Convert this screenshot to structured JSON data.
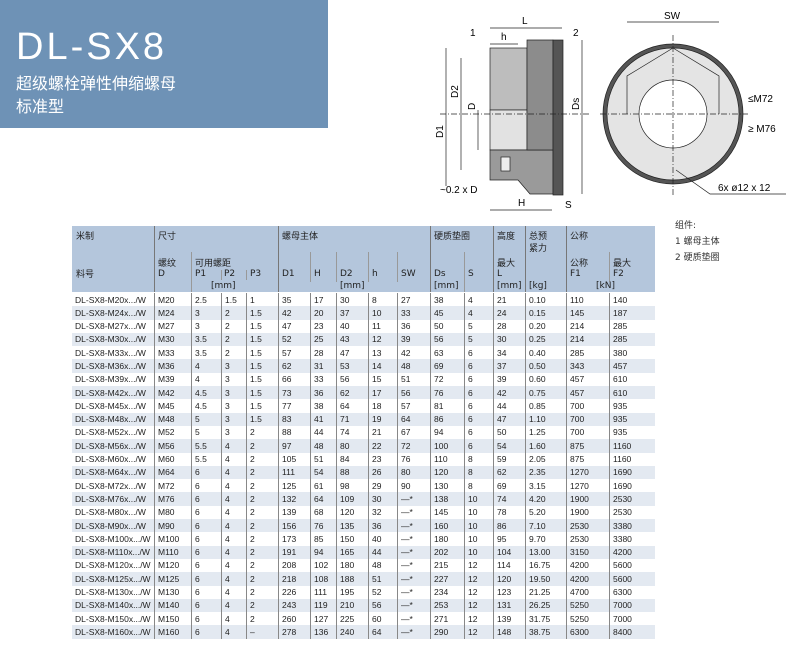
{
  "banner": {
    "title": "DL-SX8",
    "subtitle1": "超级螺栓弹性伸缩螺母",
    "subtitle2": "标准型",
    "color": "#6e92b6"
  },
  "drawing": {
    "labels": {
      "L": "L",
      "h": "h",
      "callout1": "1",
      "callout2": "2",
      "D1": "D1",
      "D2": "D2",
      "D": "D",
      "Ds": "Ds",
      "H": "H",
      "S": "S",
      "offset": "~0.2 x D",
      "SW": "SW",
      "le_m72": "≤M72",
      "ge_m76": "≥ M76",
      "holes": "6x  ø12 x 12"
    }
  },
  "parts": {
    "title": "组件:",
    "items": [
      "1 螺母主体",
      "2 硬质垫圈"
    ]
  },
  "table": {
    "header": {
      "metric": "米制",
      "part_no": "料号",
      "size": "尺寸",
      "thread": "螺纹",
      "thread_sym": "D",
      "pitch": "可用螺距",
      "p1": "P1",
      "p2": "P2",
      "p3": "P3",
      "mm1": "[mm]",
      "nut_body": "螺母主体",
      "d1": "D1",
      "h_cap": "H",
      "d2": "D2",
      "h": "h",
      "sw": "SW",
      "mm2": "[mm]",
      "washer": "硬质垫圈",
      "ds": "Ds",
      "s": "S",
      "mm3": "[mm]",
      "height": "高度",
      "max": "最大",
      "l": "L",
      "mm4": "[mm]",
      "weight1": "总预",
      "weight2": "紧力",
      "kg": "[kg]",
      "nominal": "公称",
      "nominal2": "公称",
      "f1": "F1",
      "max2": "最大",
      "f2": "F2",
      "kn": "[kN]"
    },
    "rows": [
      [
        "DL-SX8-M20x.../W",
        "M20",
        "2.5",
        "1.5",
        "1",
        "35",
        "17",
        "30",
        "8",
        "27",
        "38",
        "4",
        "21",
        "0.10",
        "110",
        "140"
      ],
      [
        "DL-SX8-M24x.../W",
        "M24",
        "3",
        "2",
        "1.5",
        "42",
        "20",
        "37",
        "10",
        "33",
        "45",
        "4",
        "24",
        "0.15",
        "145",
        "187"
      ],
      [
        "DL-SX8-M27x.../W",
        "M27",
        "3",
        "2",
        "1.5",
        "47",
        "23",
        "40",
        "11",
        "36",
        "50",
        "5",
        "28",
        "0.20",
        "214",
        "285"
      ],
      [
        "DL-SX8-M30x.../W",
        "M30",
        "3.5",
        "2",
        "1.5",
        "52",
        "25",
        "43",
        "12",
        "39",
        "56",
        "5",
        "30",
        "0.25",
        "214",
        "285"
      ],
      [
        "DL-SX8-M33x.../W",
        "M33",
        "3.5",
        "2",
        "1.5",
        "57",
        "28",
        "47",
        "13",
        "42",
        "63",
        "6",
        "34",
        "0.40",
        "285",
        "380"
      ],
      [
        "DL-SX8-M36x.../W",
        "M36",
        "4",
        "3",
        "1.5",
        "62",
        "31",
        "53",
        "14",
        "48",
        "69",
        "6",
        "37",
        "0.50",
        "343",
        "457"
      ],
      [
        "DL-SX8-M39x.../W",
        "M39",
        "4",
        "3",
        "1.5",
        "66",
        "33",
        "56",
        "15",
        "51",
        "72",
        "6",
        "39",
        "0.60",
        "457",
        "610"
      ],
      [
        "DL-SX8-M42x.../W",
        "M42",
        "4.5",
        "3",
        "1.5",
        "73",
        "36",
        "62",
        "17",
        "56",
        "76",
        "6",
        "42",
        "0.75",
        "457",
        "610"
      ],
      [
        "DL-SX8-M45x.../W",
        "M45",
        "4.5",
        "3",
        "1.5",
        "77",
        "38",
        "64",
        "18",
        "57",
        "81",
        "6",
        "44",
        "0.85",
        "700",
        "935"
      ],
      [
        "DL-SX8-M48x.../W",
        "M48",
        "5",
        "3",
        "1.5",
        "83",
        "41",
        "71",
        "19",
        "64",
        "86",
        "6",
        "47",
        "1.10",
        "700",
        "935"
      ],
      [
        "DL-SX8-M52x.../W",
        "M52",
        "5",
        "3",
        "2",
        "88",
        "44",
        "74",
        "21",
        "67",
        "94",
        "6",
        "50",
        "1.25",
        "700",
        "935"
      ],
      [
        "DL-SX8-M56x.../W",
        "M56",
        "5.5",
        "4",
        "2",
        "97",
        "48",
        "80",
        "22",
        "72",
        "100",
        "6",
        "54",
        "1.60",
        "875",
        "1160"
      ],
      [
        "DL-SX8-M60x.../W",
        "M60",
        "5.5",
        "4",
        "2",
        "105",
        "51",
        "84",
        "23",
        "76",
        "110",
        "8",
        "59",
        "2.05",
        "875",
        "1160"
      ],
      [
        "DL-SX8-M64x.../W",
        "M64",
        "6",
        "4",
        "2",
        "111",
        "54",
        "88",
        "26",
        "80",
        "120",
        "8",
        "62",
        "2.35",
        "1270",
        "1690"
      ],
      [
        "DL-SX8-M72x.../W",
        "M72",
        "6",
        "4",
        "2",
        "125",
        "61",
        "98",
        "29",
        "90",
        "130",
        "8",
        "69",
        "3.15",
        "1270",
        "1690"
      ],
      [
        "DL-SX8-M76x.../W",
        "M76",
        "6",
        "4",
        "2",
        "132",
        "64",
        "109",
        "30",
        "—*",
        "138",
        "10",
        "74",
        "4.20",
        "1900",
        "2530"
      ],
      [
        "DL-SX8-M80x.../W",
        "M80",
        "6",
        "4",
        "2",
        "139",
        "68",
        "120",
        "32",
        "—*",
        "145",
        "10",
        "78",
        "5.20",
        "1900",
        "2530"
      ],
      [
        "DL-SX8-M90x.../W",
        "M90",
        "6",
        "4",
        "2",
        "156",
        "76",
        "135",
        "36",
        "—*",
        "160",
        "10",
        "86",
        "7.10",
        "2530",
        "3380"
      ],
      [
        "DL-SX8-M100x.../W",
        "M100",
        "6",
        "4",
        "2",
        "173",
        "85",
        "150",
        "40",
        "—*",
        "180",
        "10",
        "95",
        "9.70",
        "2530",
        "3380"
      ],
      [
        "DL-SX8-M110x.../W",
        "M110",
        "6",
        "4",
        "2",
        "191",
        "94",
        "165",
        "44",
        "—*",
        "202",
        "10",
        "104",
        "13.00",
        "3150",
        "4200"
      ],
      [
        "DL-SX8-M120x.../W",
        "M120",
        "6",
        "4",
        "2",
        "208",
        "102",
        "180",
        "48",
        "—*",
        "215",
        "12",
        "114",
        "16.75",
        "4200",
        "5600"
      ],
      [
        "DL-SX8-M125x.../W",
        "M125",
        "6",
        "4",
        "2",
        "218",
        "108",
        "188",
        "51",
        "—*",
        "227",
        "12",
        "120",
        "19.50",
        "4200",
        "5600"
      ],
      [
        "DL-SX8-M130x.../W",
        "M130",
        "6",
        "4",
        "2",
        "226",
        "111",
        "195",
        "52",
        "—*",
        "234",
        "12",
        "123",
        "21.25",
        "4700",
        "6300"
      ],
      [
        "DL-SX8-M140x.../W",
        "M140",
        "6",
        "4",
        "2",
        "243",
        "119",
        "210",
        "56",
        "—*",
        "253",
        "12",
        "131",
        "26.25",
        "5250",
        "7000"
      ],
      [
        "DL-SX8-M150x.../W",
        "M150",
        "6",
        "4",
        "2",
        "260",
        "127",
        "225",
        "60",
        "—*",
        "271",
        "12",
        "139",
        "31.75",
        "5250",
        "7000"
      ],
      [
        "DL-SX8-M160x.../W",
        "M160",
        "6",
        "4",
        "–",
        "278",
        "136",
        "240",
        "64",
        "—*",
        "290",
        "12",
        "148",
        "38.75",
        "6300",
        "8400"
      ]
    ],
    "header_color": "#b4c6dc",
    "stripe_color": "#e3e9f1"
  }
}
